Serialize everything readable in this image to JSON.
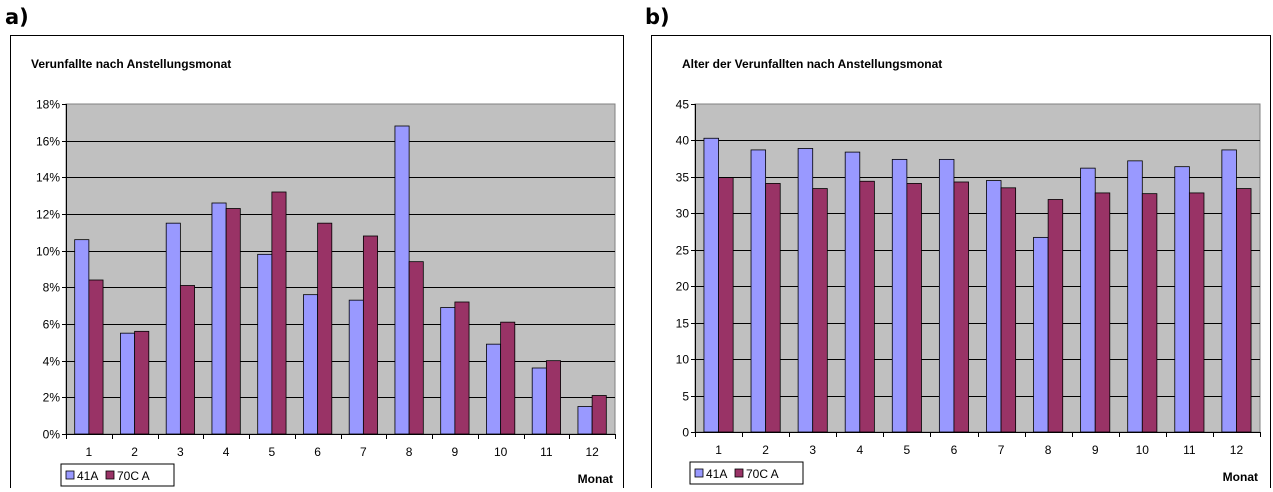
{
  "panels": [
    {
      "letter": "a)"
    },
    {
      "letter": "b)"
    }
  ],
  "colors": {
    "series1": "#9999FF",
    "series2": "#993366",
    "plot_bg": "#C0C0C0"
  },
  "chart_data": [
    {
      "type": "bar",
      "title": "Verunfallte nach Anstellungsmonat",
      "xlabel": "Monat",
      "ylabel": "",
      "ylim": [
        0,
        18
      ],
      "y_step": 2,
      "y_tick_suffix": "%",
      "categories": [
        "1",
        "2",
        "3",
        "4",
        "5",
        "6",
        "7",
        "8",
        "9",
        "10",
        "11",
        "12"
      ],
      "series": [
        {
          "name": "41A",
          "values": [
            10.6,
            5.5,
            11.5,
            12.6,
            9.8,
            7.6,
            7.3,
            16.8,
            6.9,
            4.9,
            3.6,
            1.5
          ]
        },
        {
          "name": "70C A",
          "values": [
            8.4,
            5.6,
            8.1,
            12.3,
            13.2,
            11.5,
            10.8,
            9.4,
            7.2,
            6.1,
            4.0,
            2.1
          ]
        }
      ],
      "grid": true,
      "legend": "bottom-left"
    },
    {
      "type": "bar",
      "title": "Alter der Verunfallten nach Anstellungsmonat",
      "xlabel": "Monat",
      "ylabel": "",
      "ylim": [
        0,
        45
      ],
      "y_step": 5,
      "y_tick_suffix": "",
      "categories": [
        "1",
        "2",
        "3",
        "4",
        "5",
        "6",
        "7",
        "8",
        "9",
        "10",
        "11",
        "12"
      ],
      "series": [
        {
          "name": "41A",
          "values": [
            40.3,
            38.7,
            38.9,
            38.4,
            37.4,
            37.4,
            34.5,
            26.7,
            36.2,
            37.2,
            36.4,
            38.7
          ]
        },
        {
          "name": "70C A",
          "values": [
            34.9,
            34.1,
            33.4,
            34.4,
            34.1,
            34.3,
            33.5,
            31.9,
            32.8,
            32.7,
            32.8,
            33.4
          ]
        }
      ],
      "grid": true,
      "legend": "bottom-left"
    }
  ]
}
